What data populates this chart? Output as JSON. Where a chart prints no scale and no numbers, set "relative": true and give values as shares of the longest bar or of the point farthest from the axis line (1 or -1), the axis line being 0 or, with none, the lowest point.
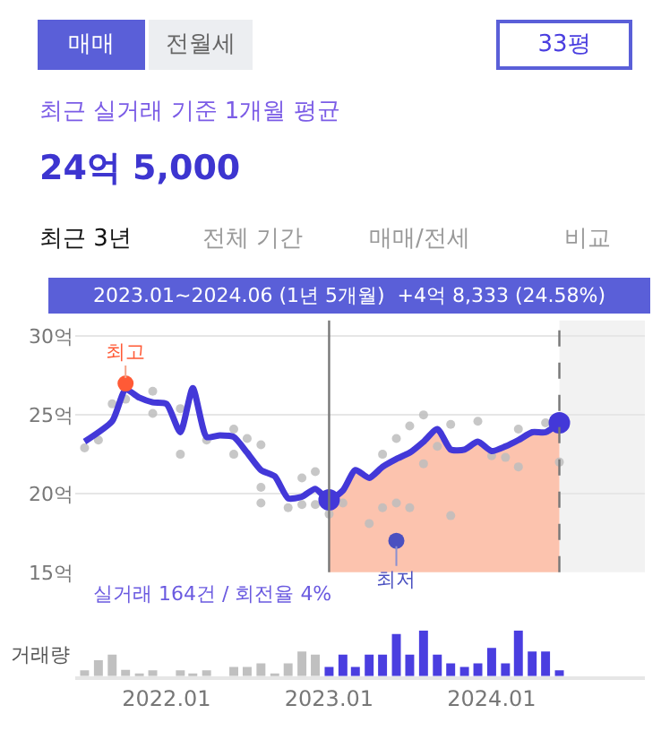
{
  "chart_data": [
    {
      "type": "line",
      "title": "최근 실거래 기준 1개월 평균",
      "subtitle": "24억 5,000",
      "annotations": [
        "매매",
        "전월세",
        "33평",
        "최근 3년",
        "전체 기간",
        "매매/전세",
        "비교",
        "2023.01~2024.06 (1년 5개월)  +4억 8,333 (24.58%)",
        {
          "text": "최고",
          "x": "2021-10",
          "y": 27.0
        },
        {
          "text": "최저",
          "x": "2023-06",
          "y": 17.0
        }
      ],
      "series": [
        {
          "type": "area",
          "color": "#fcc3ae",
          "x": [
            "2023-01",
            "2023-02",
            "2023-03",
            "2023-04",
            "2023-05",
            "2023-06",
            "2023-07",
            "2023-08",
            "2023-09",
            "2023-10",
            "2023-11",
            "2023-12",
            "2024-01",
            "2024-02",
            "2024-03",
            "2024-04",
            "2024-05",
            "2024-06"
          ],
          "values": [
            19.6,
            20.2,
            21.5,
            21.0,
            21.7,
            22.2,
            22.6,
            23.3,
            24.1,
            22.8,
            22.8,
            23.3,
            22.7,
            23.0,
            23.4,
            23.9,
            23.9,
            24.5
          ]
        },
        {
          "type": "scatter",
          "color": "#bdbdbd",
          "x": [
            "2021-07",
            "2021-08",
            "2021-09",
            "2021-10",
            "2021-12",
            "2021-12",
            "2022-02",
            "2022-02",
            "2022-04",
            "2022-06",
            "2022-06",
            "2022-07",
            "2022-08",
            "2022-08",
            "2022-08",
            "2022-10",
            "2022-11",
            "2022-11",
            "2022-12",
            "2022-12",
            "2023-01",
            "2023-02",
            "2023-04",
            "2023-05",
            "2023-05",
            "2023-06",
            "2023-06",
            "2023-07",
            "2023-07",
            "2023-08",
            "2023-08",
            "2023-09",
            "2023-10",
            "2023-10",
            "2023-12",
            "2024-01",
            "2024-02",
            "2024-03",
            "2024-03",
            "2024-05",
            "2024-06"
          ],
          "values": [
            22.9,
            23.4,
            25.7,
            26.0,
            26.5,
            25.1,
            25.4,
            22.5,
            23.4,
            24.1,
            22.5,
            23.5,
            23.1,
            20.4,
            19.4,
            19.1,
            21.0,
            19.3,
            21.4,
            19.3,
            18.7,
            19.4,
            18.1,
            19.1,
            22.5,
            19.4,
            23.5,
            19.1,
            24.3,
            25.0,
            21.9,
            23.0,
            18.6,
            24.4,
            24.6,
            22.4,
            22.3,
            21.7,
            24.1,
            24.5,
            22.0
          ]
        },
        {
          "type": "line",
          "color": "#4338d8",
          "x": [
            "2021-07",
            "2021-09",
            "2021-10",
            "2021-11",
            "2021-12",
            "2022-01",
            "2022-02",
            "2022-03",
            "2022-04",
            "2022-05",
            "2022-06",
            "2022-07",
            "2022-08",
            "2022-09",
            "2022-10",
            "2022-11",
            "2022-12",
            "2023-01",
            "2023-02",
            "2023-03",
            "2023-04",
            "2023-05",
            "2023-06",
            "2023-07",
            "2023-08",
            "2023-09",
            "2023-10",
            "2023-11",
            "2023-12",
            "2024-01",
            "2024-02",
            "2024-03",
            "2024-04",
            "2024-05",
            "2024-06"
          ],
          "values": [
            23.3,
            24.6,
            26.6,
            26.1,
            25.8,
            25.7,
            23.9,
            26.7,
            23.6,
            23.7,
            23.6,
            22.6,
            21.5,
            21.1,
            19.7,
            19.8,
            20.3,
            19.6,
            20.2,
            21.5,
            21.0,
            21.7,
            22.2,
            22.6,
            23.3,
            24.1,
            22.8,
            22.8,
            23.3,
            22.7,
            23.0,
            23.4,
            23.9,
            23.9,
            24.5
          ]
        },
        {
          "type": "scatter",
          "color": "#ff5a36",
          "x": [
            "2021-10"
          ],
          "values": [
            27.0
          ]
        },
        {
          "type": "scatter",
          "color": "#4a50c0",
          "x": [
            "2023-06"
          ],
          "values": [
            17.0
          ]
        },
        {
          "type": "scatter",
          "color": "#4338d8",
          "x": [
            "2023-01",
            "2024-06"
          ],
          "values": [
            19.6,
            24.5
          ]
        }
      ],
      "ylim": [
        15,
        31
      ],
      "yticks": [
        {
          "value": 15,
          "label": "15억"
        },
        {
          "value": 20,
          "label": "20억"
        },
        {
          "value": 25,
          "label": "25억"
        },
        {
          "value": 30,
          "label": "30억"
        }
      ],
      "xlim": [
        "2021-06-10",
        "2024-12-10"
      ],
      "grid": "y",
      "tick_labels": "y",
      "ref_lines": [
        {
          "axis": "x",
          "value": "2023-01",
          "color": "#777777"
        },
        {
          "axis": "x",
          "value": "2024-06",
          "color": "#777777",
          "line_style": "dashed"
        }
      ],
      "bands": [
        {
          "axis": "x",
          "from": "2024-06",
          "to": "2024-12-10",
          "color": "#f2f2f2"
        }
      ]
    },
    {
      "type": "bar",
      "relative": true,
      "ylabel": "거래량",
      "annotations": [
        "실거래 164건 / 회전율 4%"
      ],
      "tick_labels": "x",
      "x": [
        "2021-07",
        "2021-08",
        "2021-09",
        "2021-10",
        "2021-11",
        "2021-12",
        "2022-01",
        "2022-02",
        "2022-03",
        "2022-04",
        "2022-05",
        "2022-06",
        "2022-07",
        "2022-08",
        "2022-09",
        "2022-10",
        "2022-11",
        "2022-12",
        "2023-01",
        "2023-02",
        "2023-03",
        "2023-04",
        "2023-05",
        "2023-06",
        "2023-07",
        "2023-08",
        "2023-09",
        "2023-10",
        "2023-11",
        "2023-12",
        "2024-01",
        "2024-02",
        "2024-03",
        "2024-04",
        "2024-05",
        "2024-06"
      ],
      "values": [
        0.13,
        0.35,
        0.47,
        0.14,
        0.06,
        0.13,
        0,
        0.13,
        0.06,
        0.13,
        0,
        0.2,
        0.2,
        0.28,
        0.06,
        0.28,
        0.54,
        0.47,
        0.2,
        0.47,
        0.2,
        0.47,
        0.47,
        0.92,
        0.47,
        1,
        0.47,
        0.28,
        0.2,
        0.28,
        0.62,
        0.28,
        1,
        0.54,
        0.54,
        0.13
      ],
      "colors": [
        "#c0c0c0",
        "#c0c0c0",
        "#c0c0c0",
        "#c0c0c0",
        "#c0c0c0",
        "#c0c0c0",
        "#c0c0c0",
        "#c0c0c0",
        "#c0c0c0",
        "#c0c0c0",
        "#c0c0c0",
        "#c0c0c0",
        "#c0c0c0",
        "#c0c0c0",
        "#c0c0c0",
        "#c0c0c0",
        "#c0c0c0",
        "#c0c0c0",
        "#4a3ee0",
        "#4a3ee0",
        "#4a3ee0",
        "#4a3ee0",
        "#4a3ee0",
        "#4a3ee0",
        "#4a3ee0",
        "#4a3ee0",
        "#4a3ee0",
        "#4a3ee0",
        "#4a3ee0",
        "#4a3ee0",
        "#4a3ee0",
        "#4a3ee0",
        "#4a3ee0",
        "#4a3ee0",
        "#4a3ee0",
        "#4a3ee0"
      ],
      "xlim": [
        "2021-06-10",
        "2024-12-10"
      ],
      "xticks": [
        {
          "value": "2022-01",
          "label": "2022.01"
        },
        {
          "value": "2023-01",
          "label": "2023.01"
        },
        {
          "value": "2024-01",
          "label": "2024.01"
        }
      ]
    }
  ]
}
